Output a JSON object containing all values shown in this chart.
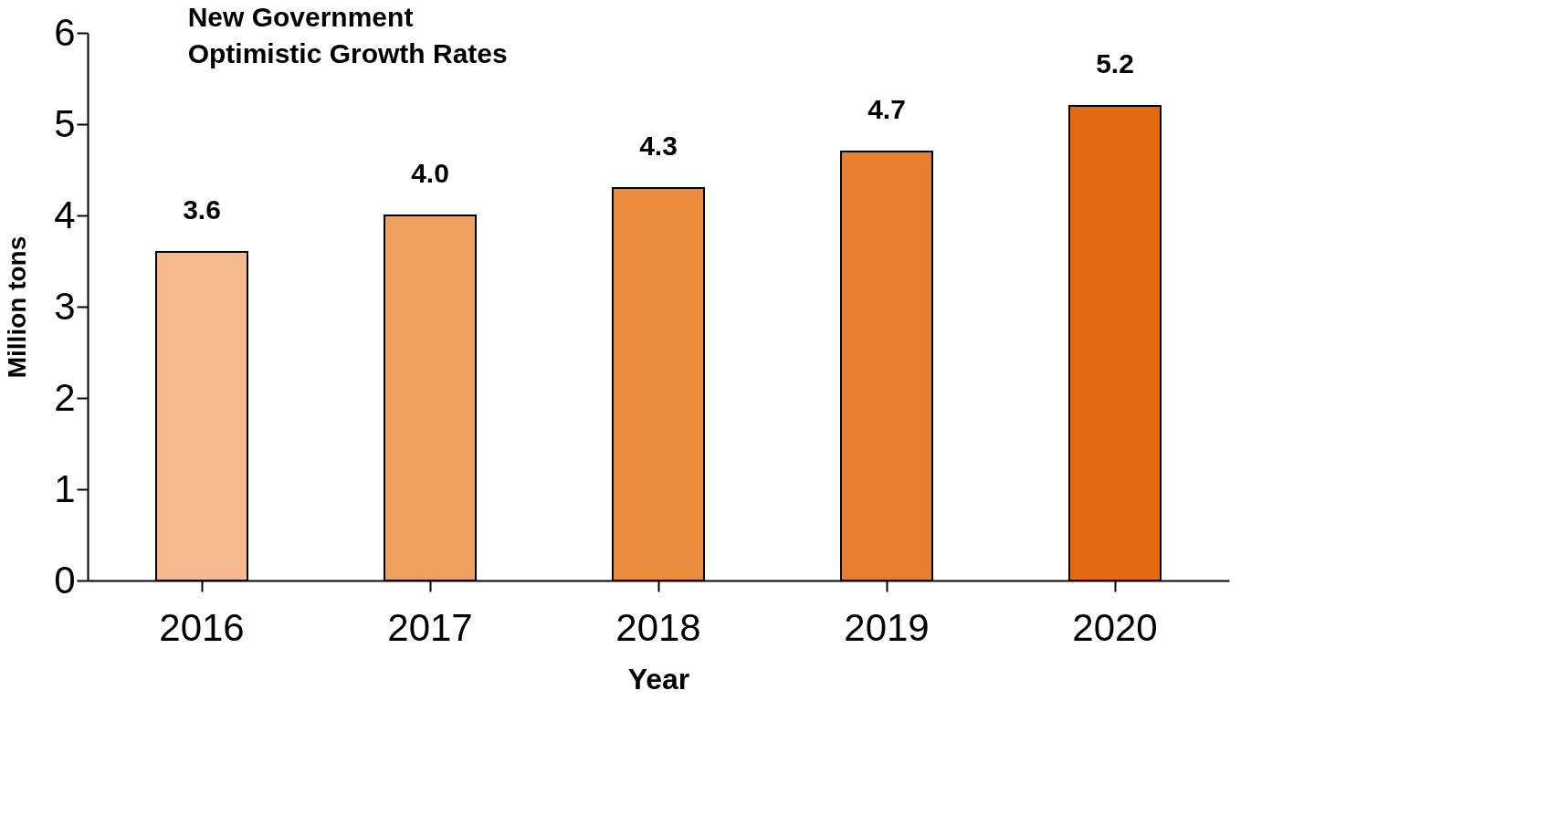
{
  "chart_data": {
    "type": "bar",
    "title": "New Government\nOptimistic Growth Rates",
    "xlabel": "Year",
    "ylabel": "Million tons",
    "categories": [
      "2016",
      "2017",
      "2018",
      "2019",
      "2020"
    ],
    "values": [
      3.6,
      4.0,
      4.3,
      4.7,
      5.2
    ],
    "colors": [
      "#f5bb8f",
      "#eda05f",
      "#eb8c3c",
      "#e97f2e",
      "#e26a10"
    ],
    "value_labels": [
      "3.6",
      "4.0",
      "4.3",
      "4.7",
      "5.2"
    ],
    "ylim": [
      0,
      6
    ],
    "yticks": [
      0,
      1,
      2,
      3,
      4,
      5,
      6
    ],
    "grid": false
  }
}
